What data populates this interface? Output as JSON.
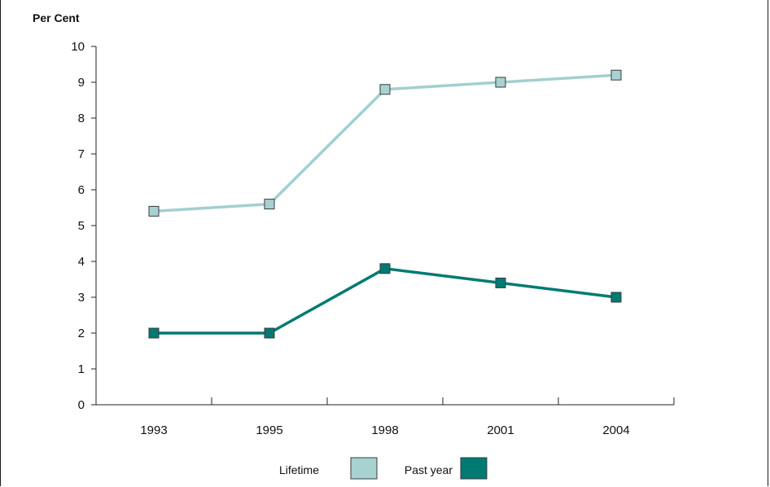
{
  "chart_data": {
    "type": "line",
    "ylabel": "Per Cent",
    "xlabel": "",
    "categories": [
      "1993",
      "1995",
      "1998",
      "2001",
      "2004"
    ],
    "ylim": [
      0,
      10
    ],
    "yticks": [
      0,
      1,
      2,
      3,
      4,
      5,
      6,
      7,
      8,
      9,
      10
    ],
    "grid": false,
    "legend_position": "bottom-center",
    "series": [
      {
        "name": "Lifetime",
        "values": [
          5.4,
          5.6,
          8.8,
          9.0,
          9.2
        ],
        "color": "#a3cfcf",
        "marker_color": "#a8d2d2"
      },
      {
        "name": "Past year",
        "values": [
          2.0,
          2.0,
          3.8,
          3.4,
          3.0
        ],
        "color": "#007a72",
        "marker_color": "#007a72"
      }
    ]
  }
}
